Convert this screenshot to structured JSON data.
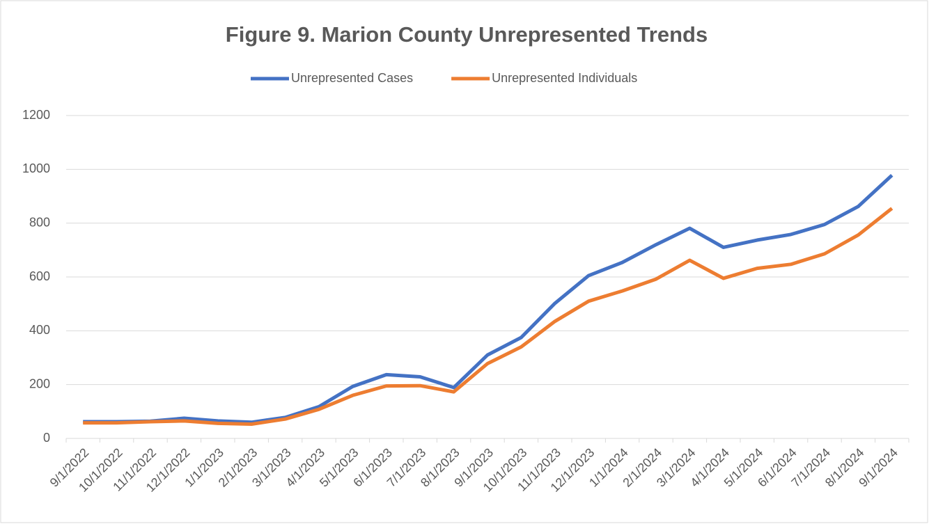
{
  "chart_data": {
    "type": "line",
    "title": "Figure 9. Marion County Unrepresented Trends",
    "categories": [
      "9/1/2022",
      "10/1/2022",
      "11/1/2022",
      "12/1/2022",
      "1/1/2023",
      "2/1/2023",
      "3/1/2023",
      "4/1/2023",
      "5/1/2023",
      "6/1/2023",
      "7/1/2023",
      "8/1/2023",
      "9/1/2023",
      "10/1/2023",
      "11/1/2023",
      "12/1/2023",
      "1/1/2024",
      "2/1/2024",
      "3/1/2024",
      "4/1/2024",
      "5/1/2024",
      "6/1/2024",
      "7/1/2024",
      "8/1/2024",
      "9/1/2024"
    ],
    "series": [
      {
        "name": "Unrepresented Cases",
        "color": "#4472c4",
        "values": [
          62,
          62,
          64,
          75,
          65,
          60,
          78,
          118,
          193,
          237,
          229,
          189,
          310,
          375,
          502,
          605,
          654,
          720,
          781,
          710,
          737,
          758,
          795,
          862,
          978
        ]
      },
      {
        "name": "Unrepresented Individuals",
        "color": "#ed7d31",
        "values": [
          58,
          58,
          62,
          65,
          56,
          53,
          72,
          108,
          160,
          195,
          196,
          173,
          278,
          340,
          435,
          510,
          548,
          592,
          662,
          595,
          632,
          647,
          686,
          756,
          855
        ]
      }
    ],
    "ylim": [
      0,
      1200
    ],
    "yticks": [
      0,
      200,
      400,
      600,
      800,
      1000,
      1200
    ],
    "grid": true,
    "legend": "top"
  }
}
